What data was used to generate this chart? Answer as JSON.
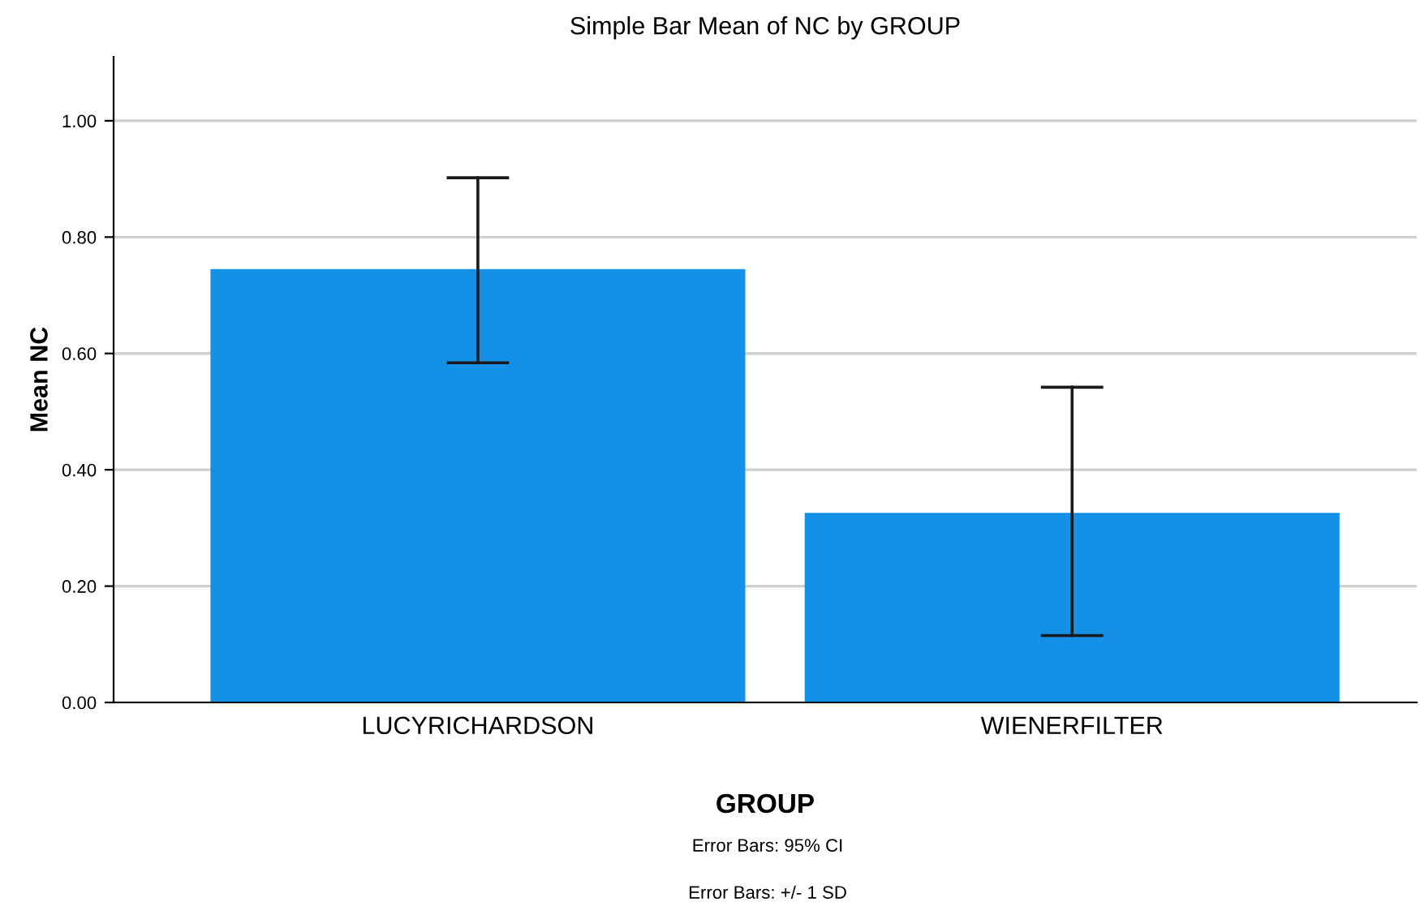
{
  "chart_data": {
    "type": "bar",
    "title": "Simple Bar Mean of NC by GROUP",
    "xlabel": "GROUP",
    "ylabel": "Mean NC",
    "categories": [
      "LUCYRICHARDSON",
      "WIENERFILTER"
    ],
    "values": [
      0.745,
      0.326
    ],
    "errors": [
      [
        0.584,
        0.902
      ],
      [
        0.115,
        0.542
      ]
    ],
    "color": "#1490e6",
    "ylim": [
      0,
      1.11
    ],
    "yticks": [
      {
        "value": 0,
        "label": "0.00"
      },
      {
        "value": 0.2,
        "label": "0.20"
      },
      {
        "value": 0.4,
        "label": "0.40"
      },
      {
        "value": 0.6,
        "label": "0.60"
      },
      {
        "value": 0.8,
        "label": "0.80"
      },
      {
        "value": 1.0,
        "label": "1.00"
      }
    ],
    "grid": "y",
    "annotations": [
      "Error Bars: 95% CI",
      "Error Bars: +/- 1 SD"
    ]
  }
}
